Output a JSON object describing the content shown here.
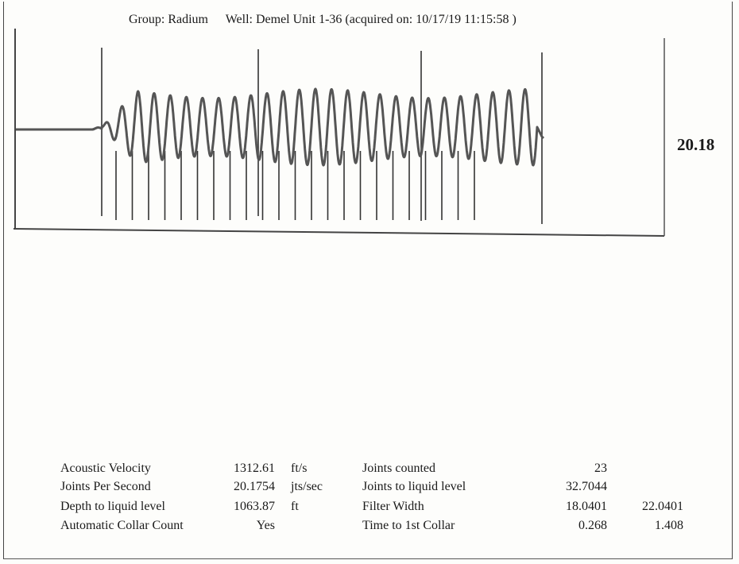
{
  "header": {
    "group": "Group: Radium",
    "well": "Well: Demel Unit 1-36 (acquired on: 10/17/19 11:15:58 )"
  },
  "readout": "20.18",
  "chart_data": {
    "type": "line",
    "title": "",
    "xlabel": "",
    "ylabel": "",
    "grid": false,
    "legend": "none",
    "series": [
      {
        "name": "",
        "kind": "acoustic-trace-oscillation",
        "cycles": 27,
        "color": "#555555"
      }
    ],
    "joint_markers": {
      "count": 23,
      "color": "#333333"
    },
    "stroke_color": "#555555"
  },
  "stats": {
    "rows": [
      {
        "label": "Acoustic Velocity",
        "value": "1312.61",
        "unit": "ft/s",
        "label2": "Joints counted",
        "value2": "23",
        "value3": ""
      },
      {
        "label": "Joints Per Second",
        "value": "20.1754",
        "unit": "jts/sec",
        "label2": "Joints to liquid level",
        "value2": "32.7044",
        "value3": ""
      },
      {
        "label": "Depth to liquid level",
        "value": "1063.87",
        "unit": "ft",
        "label2": "Filter Width",
        "value2": "18.0401",
        "value3": "22.0401"
      },
      {
        "label": "Automatic Collar Count",
        "value": "Yes",
        "unit": "",
        "label2": "Time to 1st Collar",
        "value2": "0.268",
        "value3": "1.408"
      }
    ]
  }
}
